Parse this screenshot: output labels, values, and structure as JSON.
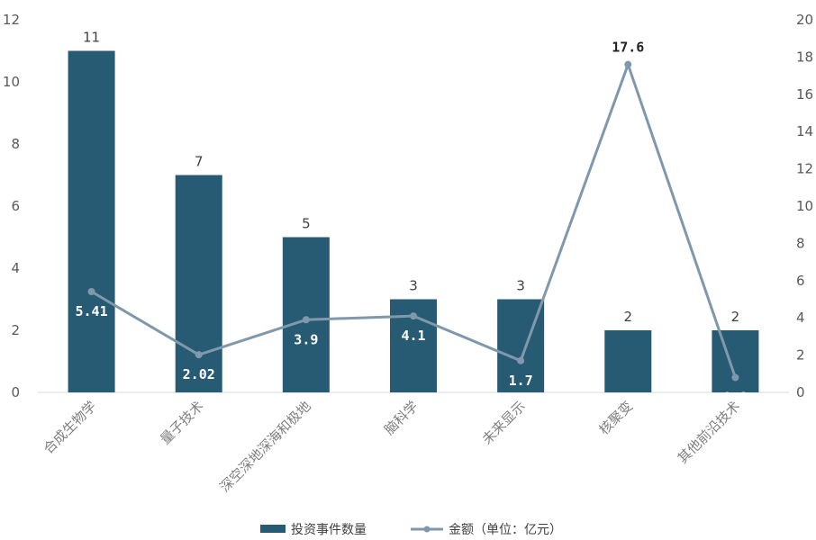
{
  "chart_data": {
    "type": "bar",
    "categories": [
      "合成生物学",
      "量子技术",
      "深空深地深海和极地",
      "脑科学",
      "未来显示",
      "核聚变",
      "其他前沿技术"
    ],
    "series": [
      {
        "name": "投资事件数量",
        "type": "bar",
        "axis": "left",
        "values": [
          11,
          7,
          5,
          3,
          3,
          2,
          2
        ]
      },
      {
        "name": "金额（单位：亿元）",
        "type": "line",
        "axis": "right",
        "values": [
          5.41,
          2.02,
          3.9,
          4.1,
          1.7,
          17.6,
          0.8
        ]
      }
    ],
    "bar_labels": [
      "11",
      "7",
      "5",
      "3",
      "3",
      "2",
      "2"
    ],
    "line_labels": [
      "5.41",
      "2.02",
      "3.9",
      "4.1",
      "1.7",
      "17.6",
      "0.8"
    ],
    "ylim_left": [
      0,
      12
    ],
    "ylim_right": [
      0,
      20
    ],
    "yticks_left": [
      "0",
      "2",
      "4",
      "6",
      "8",
      "10",
      "12"
    ],
    "yticks_right": [
      "0",
      "2",
      "4",
      "6",
      "8",
      "10",
      "12",
      "14",
      "16",
      "18",
      "20"
    ],
    "grid": false,
    "legend_position": "bottom",
    "colors": {
      "bar": "#275a73",
      "line": "#7f98ab",
      "axis": "#d9d9d9"
    }
  }
}
